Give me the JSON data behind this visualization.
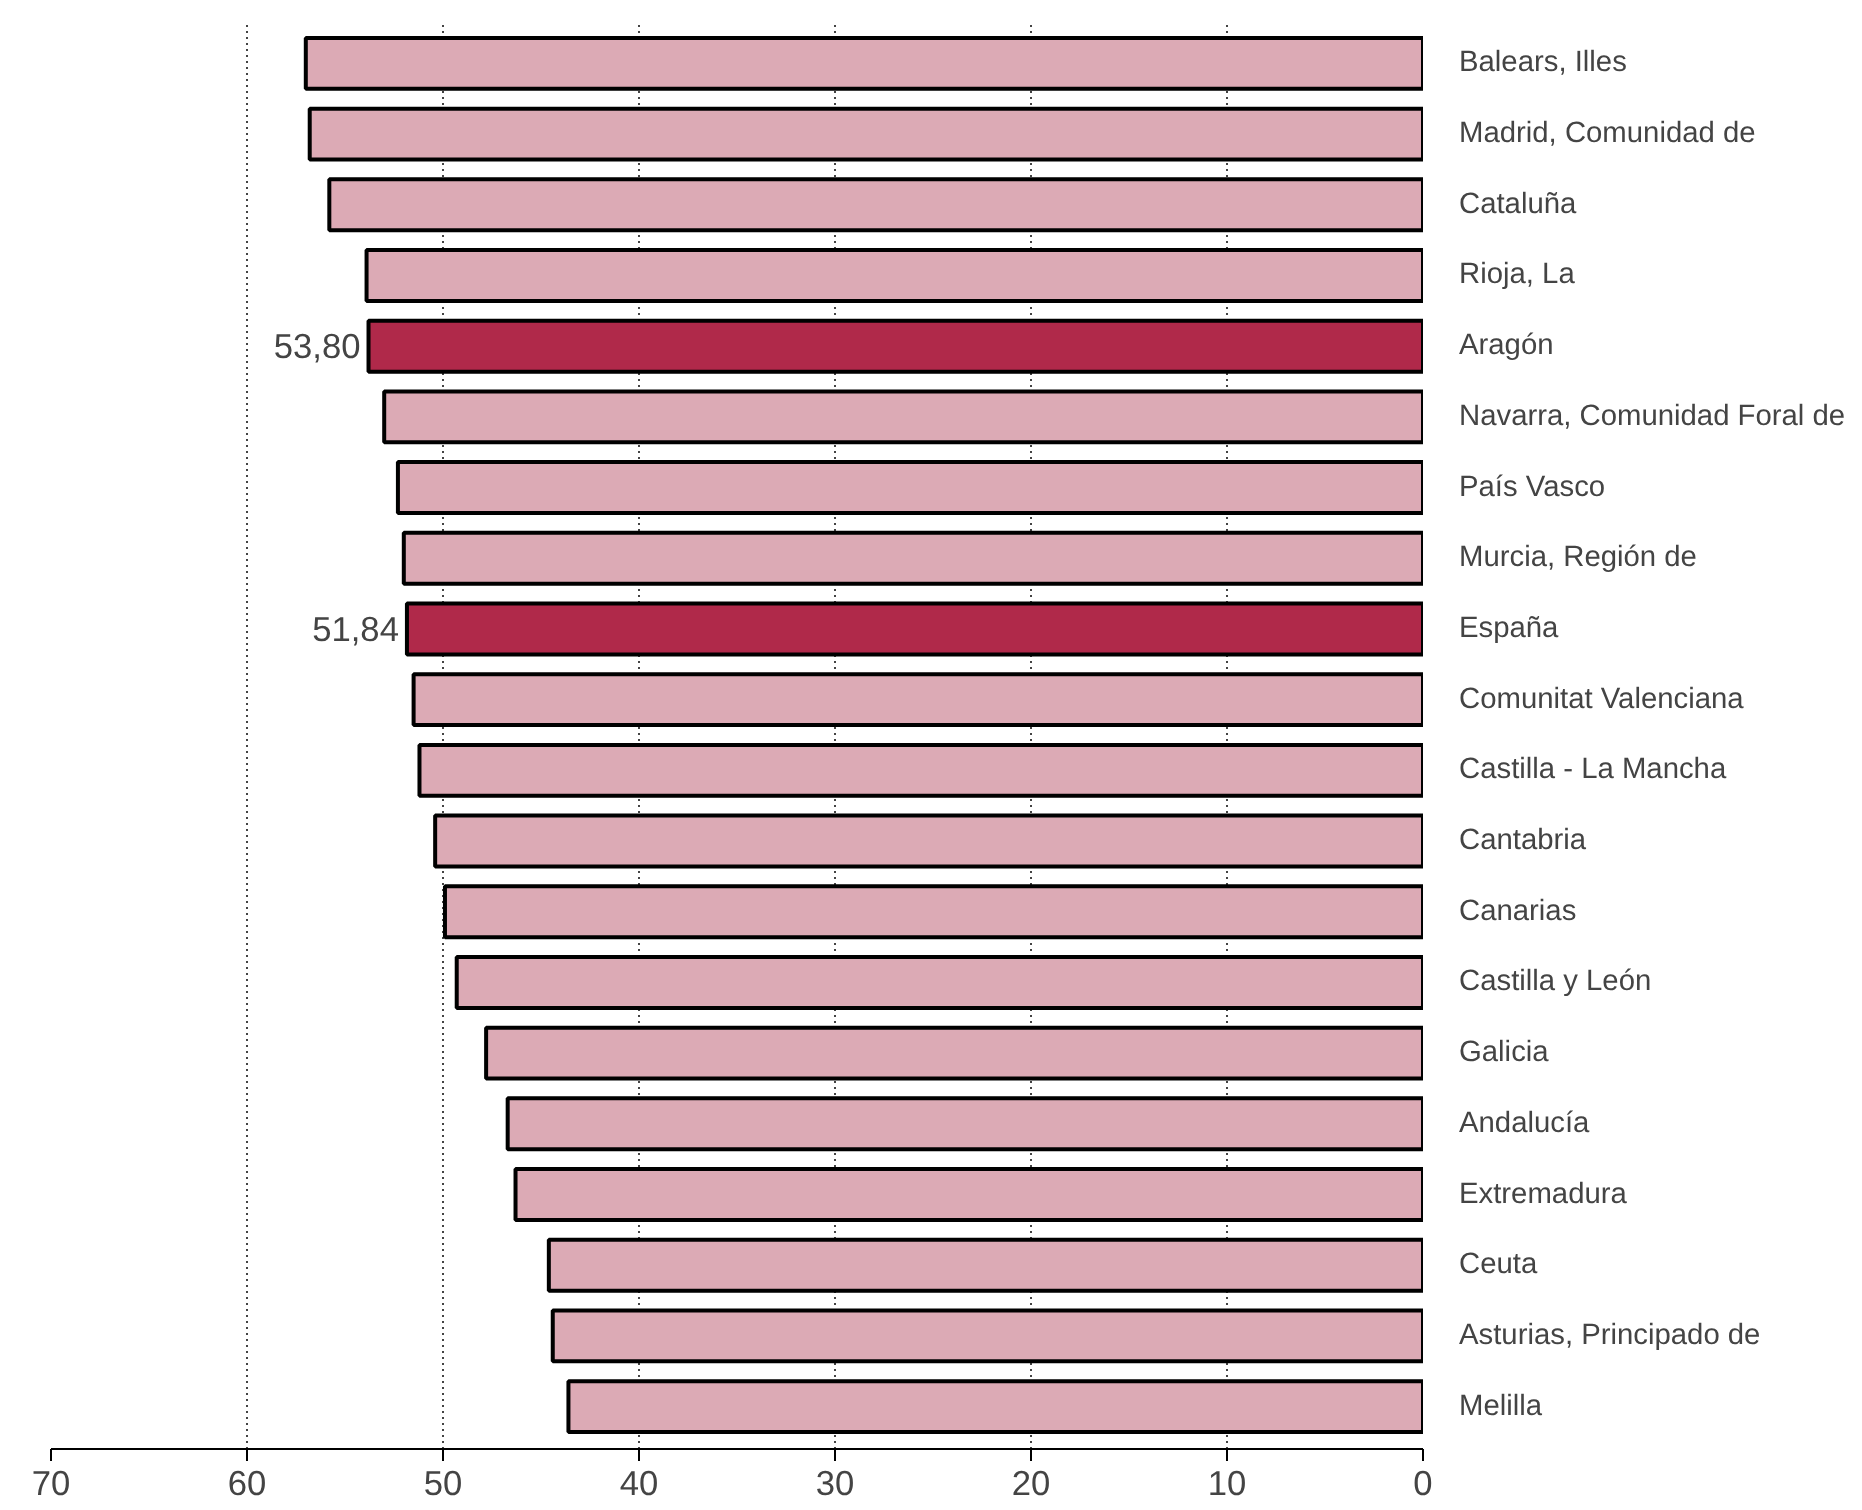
{
  "chart_data": {
    "type": "bar",
    "orientation": "horizontal",
    "categories": [
      "Balears, Illes",
      "Madrid, Comunidad de",
      "Cataluña",
      "Rioja, La",
      "Aragón",
      "Navarra, Comunidad Foral de",
      "País Vasco",
      "Murcia, Región de",
      "España",
      "Comunitat Valenciana",
      "Castilla - La Mancha",
      "Cantabria",
      "Canarias",
      "Castilla y León",
      "Galicia",
      "Andalucía",
      "Extremadura",
      "Ceuta",
      "Asturias, Principado de",
      "Melilla"
    ],
    "values": [
      57.0,
      56.8,
      55.8,
      53.9,
      53.8,
      53.0,
      52.3,
      52.0,
      51.84,
      51.5,
      51.2,
      50.4,
      49.9,
      49.3,
      47.8,
      46.7,
      46.3,
      44.6,
      44.4,
      43.6
    ],
    "colors": [
      "#dcaab5",
      "#dcaab5",
      "#dcaab5",
      "#dcaab5",
      "#b0294a",
      "#dcaab5",
      "#dcaab5",
      "#dcaab5",
      "#b0294a",
      "#dcaab5",
      "#dcaab5",
      "#dcaab5",
      "#dcaab5",
      "#dcaab5",
      "#dcaab5",
      "#dcaab5",
      "#dcaab5",
      "#dcaab5",
      "#dcaab5",
      "#dcaab5"
    ],
    "value_labels": [
      null,
      null,
      null,
      null,
      "53,80",
      null,
      null,
      null,
      "51,84",
      null,
      null,
      null,
      null,
      null,
      null,
      null,
      null,
      null,
      null,
      null
    ],
    "xlim": [
      70,
      0
    ],
    "xticks": [
      70,
      60,
      50,
      40,
      30,
      20,
      10,
      0
    ],
    "grid": "x"
  }
}
